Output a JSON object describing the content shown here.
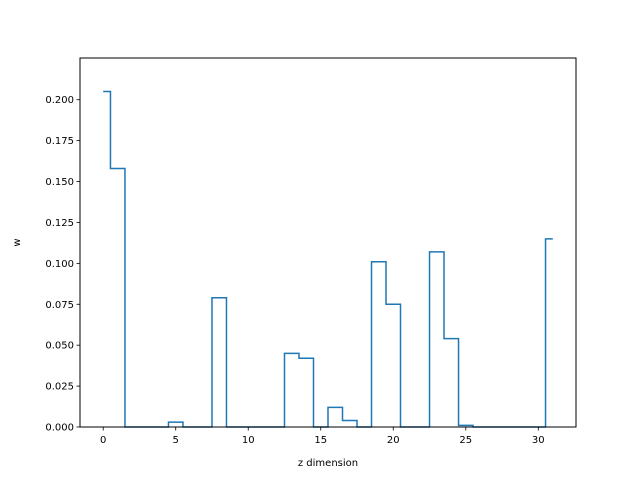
{
  "chart_data": {
    "type": "step",
    "title": "",
    "xlabel": "z dimension",
    "ylabel": "w",
    "xlim": [
      -1.6,
      32.6
    ],
    "ylim": [
      0,
      0.2255
    ],
    "xticks": [
      0,
      5,
      10,
      15,
      20,
      25,
      30
    ],
    "xtick_labels": [
      "0",
      "5",
      "10",
      "15",
      "20",
      "25",
      "30"
    ],
    "yticks": [
      0.0,
      0.025,
      0.05,
      0.075,
      0.1,
      0.125,
      0.15,
      0.175,
      0.2
    ],
    "ytick_labels": [
      "0.000",
      "0.025",
      "0.050",
      "0.075",
      "0.100",
      "0.125",
      "0.150",
      "0.175",
      "0.200"
    ],
    "grid": false,
    "series": [
      {
        "color": "#1f77b4",
        "step_where": "mid",
        "x": [
          0,
          1,
          2,
          3,
          4,
          5,
          6,
          7,
          8,
          9,
          10,
          11,
          12,
          13,
          14,
          15,
          16,
          17,
          18,
          19,
          20,
          21,
          22,
          23,
          24,
          25,
          26,
          27,
          28,
          29,
          30,
          31
        ],
        "values": [
          0.205,
          0.158,
          0,
          0,
          0,
          0.003,
          0,
          0,
          0.079,
          0,
          0,
          0,
          0,
          0.045,
          0.042,
          0,
          0.012,
          0.004,
          0,
          0.101,
          0.075,
          0,
          0,
          0.107,
          0.054,
          0.001,
          0,
          0,
          0,
          0,
          0,
          0.115
        ]
      }
    ]
  }
}
